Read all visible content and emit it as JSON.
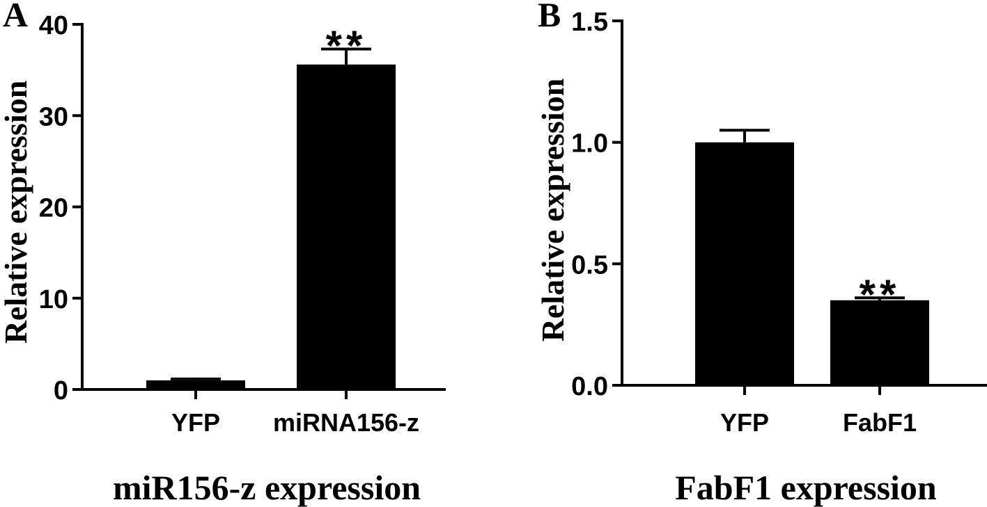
{
  "chart_data": [
    {
      "panel_label": "A",
      "type": "bar",
      "categories": [
        "YFP",
        "miRNA156-z"
      ],
      "values": [
        1.0,
        35.6
      ],
      "error": [
        0.15,
        1.7
      ],
      "significance": [
        "",
        "**"
      ],
      "ylabel": "Relative expression",
      "xlabel": "miR156-z expression",
      "ylim": [
        0,
        40
      ],
      "yticks": [
        "0",
        "10",
        "20",
        "30",
        "40"
      ],
      "color": "#000000",
      "grid": false
    },
    {
      "panel_label": "B",
      "type": "bar",
      "categories": [
        "YFP",
        "FabF1"
      ],
      "values": [
        1.0,
        0.35
      ],
      "error": [
        0.05,
        0.01
      ],
      "significance": [
        "",
        "**"
      ],
      "ylabel": "Relative expression",
      "xlabel": "FabF1 expression",
      "ylim": [
        0,
        1.5
      ],
      "yticks": [
        "0.0",
        "0.5",
        "1.0",
        "1.5"
      ],
      "color": "#000000",
      "grid": false
    }
  ]
}
